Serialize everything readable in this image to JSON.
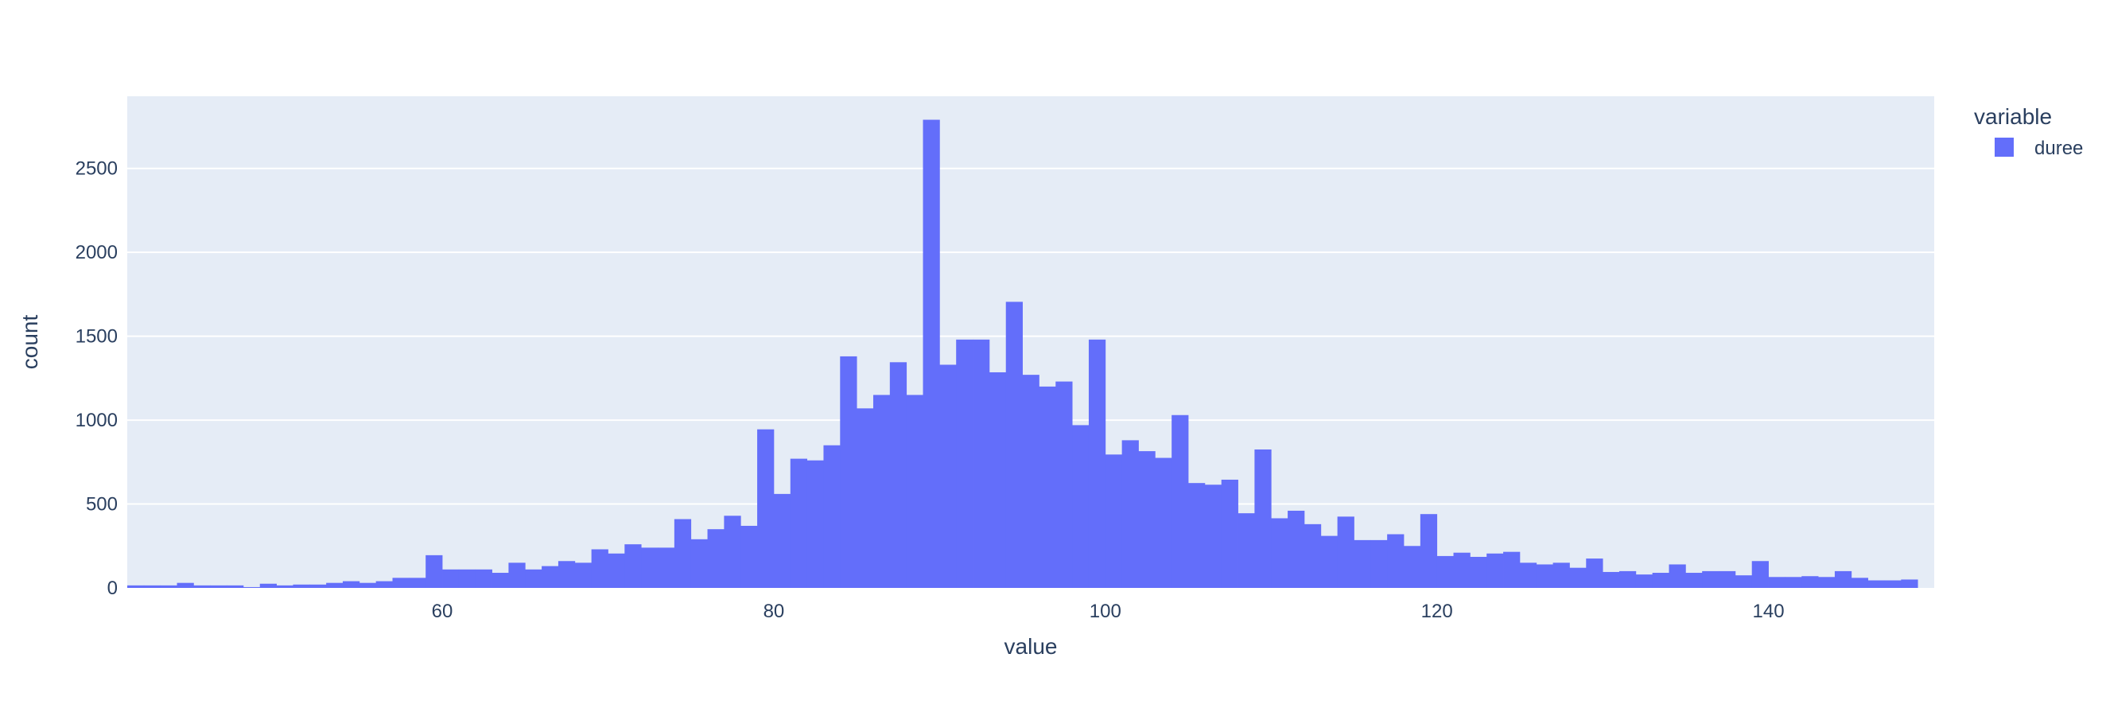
{
  "chart_data": {
    "type": "bar",
    "xlabel": "value",
    "ylabel": "count",
    "xlim": [
      41,
      150
    ],
    "ylim": [
      0,
      2930
    ],
    "bin_start": 41,
    "bin_width": 1,
    "xticks": [
      60,
      80,
      100,
      120,
      140
    ],
    "yticks": [
      0,
      500,
      1000,
      1500,
      2000,
      2500
    ],
    "grid": true,
    "legend": {
      "title": "variable",
      "position": "top-right"
    },
    "series": [
      {
        "name": "duree",
        "color": "#636efa",
        "values": [
          15,
          15,
          15,
          30,
          15,
          15,
          15,
          5,
          25,
          15,
          20,
          20,
          30,
          40,
          30,
          40,
          60,
          60,
          195,
          110,
          110,
          110,
          90,
          150,
          110,
          130,
          160,
          150,
          230,
          205,
          260,
          240,
          240,
          410,
          290,
          350,
          430,
          370,
          945,
          560,
          770,
          760,
          850,
          1380,
          1070,
          1150,
          1345,
          1150,
          2790,
          1330,
          1480,
          1480,
          1285,
          1705,
          1270,
          1200,
          1230,
          970,
          1480,
          795,
          880,
          815,
          775,
          1030,
          625,
          615,
          645,
          445,
          825,
          415,
          460,
          380,
          310,
          425,
          285,
          285,
          320,
          250,
          440,
          190,
          210,
          185,
          205,
          215,
          150,
          140,
          150,
          120,
          175,
          95,
          100,
          80,
          90,
          140,
          90,
          100,
          100,
          75,
          160,
          65,
          65,
          70,
          65,
          100,
          60,
          45,
          45,
          50
        ]
      }
    ]
  }
}
